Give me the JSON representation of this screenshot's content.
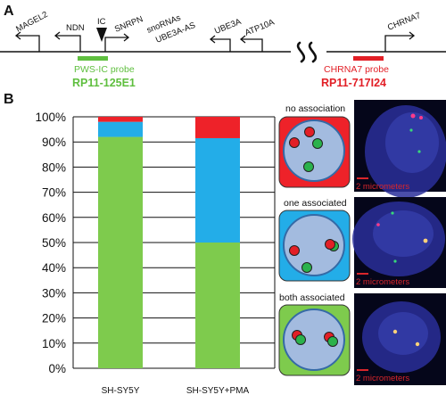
{
  "panel_a": {
    "letter": "A",
    "genes": {
      "magel2": "MAGEL2",
      "ndn": "NDN",
      "ic": "IC",
      "snrpn": "SNRPN",
      "snornas": "snoRNAs",
      "ube3a_as": "UBE3A-AS",
      "ube3a": "UBE3A",
      "atp10a": "ATP10A",
      "chrna7": "CHRNA7"
    },
    "probes": {
      "pws_ic_name": "PWS-IC probe",
      "pws_ic_clone": "RP11-125E1",
      "chrna7_name": "CHRNA7 probe",
      "chrna7_clone": "RP11-717I24"
    },
    "colors": {
      "green": "#5fbf3f",
      "red": "#e21f26"
    }
  },
  "panel_b": {
    "letter": "B",
    "conditions": {
      "none": "no association",
      "one": "one associated",
      "both": "both associated"
    },
    "scale_bar_label": "2 micrometers",
    "colors": {
      "none": "#ee2229",
      "one": "#23ade8",
      "both": "#7ecb4d",
      "nucleus_fill": "#a3bbdf",
      "nucleus_stroke": "#356aa6",
      "micrograph_bg": "#05061a"
    }
  },
  "chart_data": {
    "type": "bar",
    "stacked": true,
    "categories": [
      "SH-SY5Y",
      "SH-SY5Y+PMA"
    ],
    "series": [
      {
        "name": "both associated",
        "color": "#7ecb4d",
        "values": [
          92,
          50
        ]
      },
      {
        "name": "one associated",
        "color": "#23ade8",
        "values": [
          6,
          41.5
        ]
      },
      {
        "name": "no association",
        "color": "#ee2229",
        "values": [
          2,
          8.5
        ]
      }
    ],
    "ylim": [
      0,
      100
    ],
    "yticks": [
      "0%",
      "10%",
      "20%",
      "30%",
      "40%",
      "50%",
      "60%",
      "70%",
      "80%",
      "90%",
      "100%"
    ],
    "grid": true
  }
}
